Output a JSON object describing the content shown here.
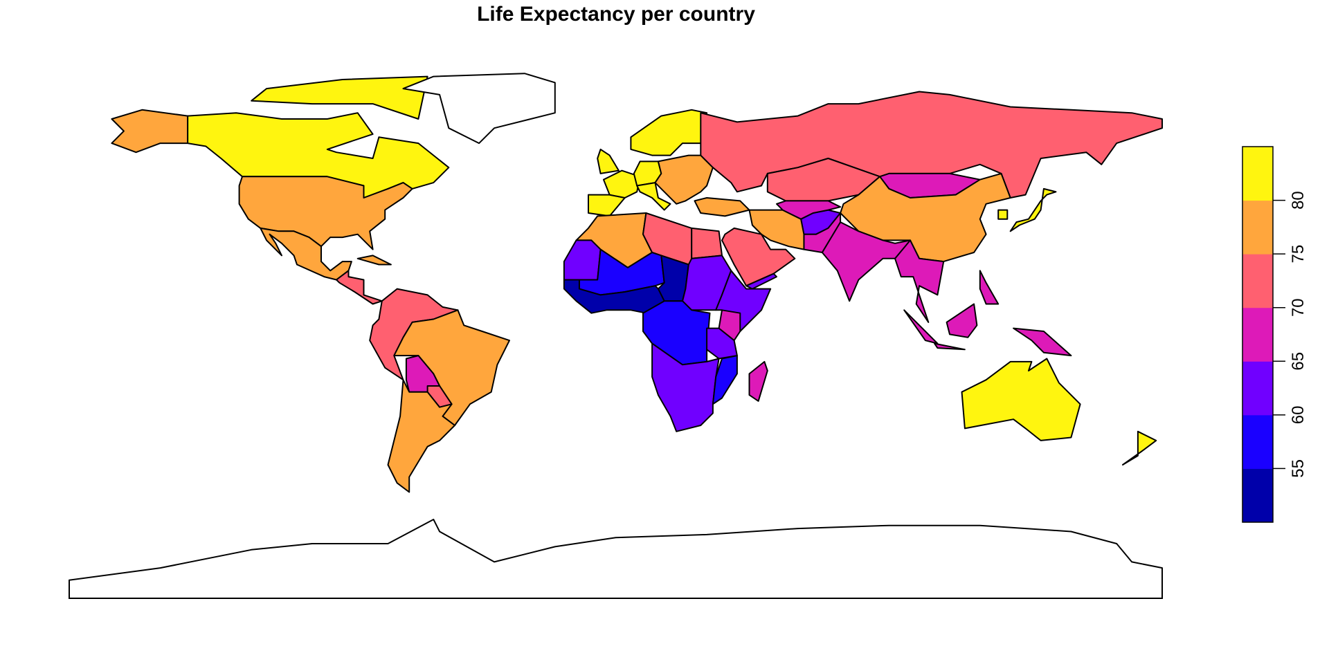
{
  "chart_data": {
    "type": "choropleth",
    "title": "Life Expectancy per country",
    "legend": {
      "placement": "right",
      "breaks": [
        50,
        55,
        60,
        65,
        70,
        75,
        80,
        85
      ],
      "tick_labels": [
        "55",
        "60",
        "65",
        "70",
        "75",
        "80"
      ],
      "colors": [
        "#0000AA",
        "#1A00FF",
        "#7000FF",
        "#DD1AB8",
        "#FF6070",
        "#FFA63D",
        "#FFF50F"
      ]
    },
    "no_data_color": "#FFFFFF",
    "regions": [
      {
        "id": "canada",
        "value": 82
      },
      {
        "id": "canada-islands",
        "value": 82
      },
      {
        "id": "alaska",
        "value": 78
      },
      {
        "id": "greenland",
        "value": null
      },
      {
        "id": "usa",
        "value": 78
      },
      {
        "id": "mexico",
        "value": 76
      },
      {
        "id": "central-america",
        "value": 73
      },
      {
        "id": "cuba",
        "value": 78
      },
      {
        "id": "northern-south-america",
        "value": 73
      },
      {
        "id": "brazil",
        "value": 75.5
      },
      {
        "id": "bolivia",
        "value": 68
      },
      {
        "id": "paraguay",
        "value": 73
      },
      {
        "id": "argentina-chile",
        "value": 77
      },
      {
        "id": "antarctica",
        "value": null
      },
      {
        "id": "iberia",
        "value": 82
      },
      {
        "id": "france",
        "value": 82
      },
      {
        "id": "uk",
        "value": 81
      },
      {
        "id": "scandinavia",
        "value": 82
      },
      {
        "id": "central-europe",
        "value": 81
      },
      {
        "id": "italy",
        "value": 82
      },
      {
        "id": "eastern-europe",
        "value": 76
      },
      {
        "id": "russia",
        "value": 72
      },
      {
        "id": "kazakhstan",
        "value": 72
      },
      {
        "id": "mongolia",
        "value": 69
      },
      {
        "id": "china",
        "value": 76
      },
      {
        "id": "korea",
        "value": 82
      },
      {
        "id": "japan",
        "value": 84
      },
      {
        "id": "india",
        "value": 68
      },
      {
        "id": "afghanistan",
        "value": 63
      },
      {
        "id": "pakistan",
        "value": 66
      },
      {
        "id": "iran",
        "value": 76
      },
      {
        "id": "central-asia",
        "value": 69
      },
      {
        "id": "turkey",
        "value": 76
      },
      {
        "id": "arabia",
        "value": 74
      },
      {
        "id": "yemen",
        "value": 64
      },
      {
        "id": "southeast-asia",
        "value": 69
      },
      {
        "id": "sumatra",
        "value": 69
      },
      {
        "id": "borneo",
        "value": 69
      },
      {
        "id": "java",
        "value": 69
      },
      {
        "id": "new-guinea",
        "value": 66
      },
      {
        "id": "philippines",
        "value": 69
      },
      {
        "id": "australia",
        "value": 83
      },
      {
        "id": "new-zealand",
        "value": 82
      },
      {
        "id": "maghreb",
        "value": 76
      },
      {
        "id": "mauritania",
        "value": 63
      },
      {
        "id": "libya",
        "value": 72
      },
      {
        "id": "egypt",
        "value": 71
      },
      {
        "id": "sahel",
        "value": 58
      },
      {
        "id": "chad",
        "value": 53
      },
      {
        "id": "sudan",
        "value": 64
      },
      {
        "id": "horn-of-africa",
        "value": 64
      },
      {
        "id": "west-africa-coast",
        "value": 54
      },
      {
        "id": "central-africa",
        "value": 59
      },
      {
        "id": "kenya",
        "value": 66
      },
      {
        "id": "tanzania",
        "value": 64
      },
      {
        "id": "southern-africa",
        "value": 63
      },
      {
        "id": "mozambique",
        "value": 58
      },
      {
        "id": "madagascar",
        "value": 66
      }
    ]
  }
}
